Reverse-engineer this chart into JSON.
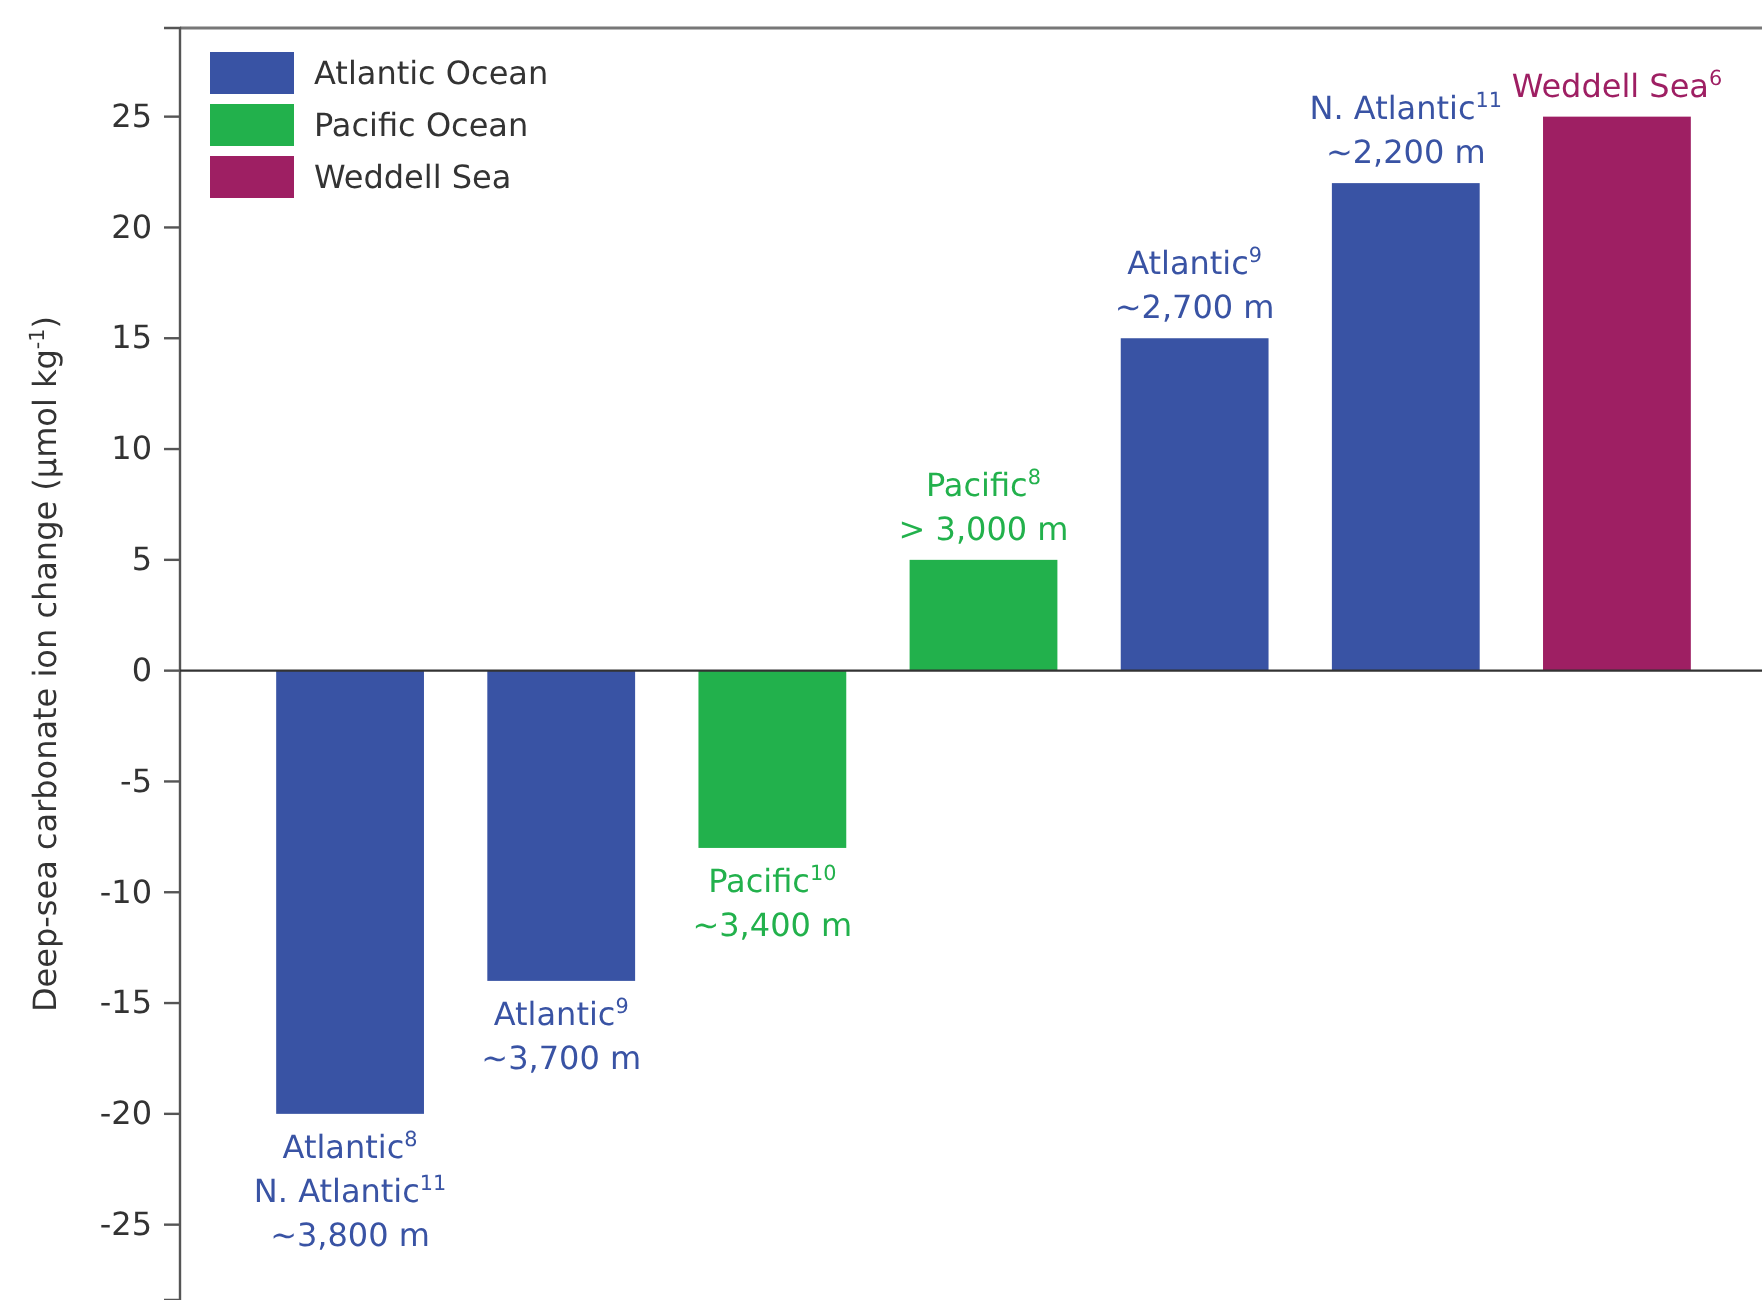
{
  "chart_data": {
    "type": "bar",
    "ylabel": "Deep-sea carbonate ion change (µmol kg$^{-1}$)",
    "categories": [
      null,
      null,
      null,
      null,
      null,
      null,
      null
    ],
    "series": [
      {
        "name": "Atlantic Ocean",
        "color": "#3953a4",
        "values": [
          -20,
          -14,
          null,
          null,
          15,
          22,
          null
        ]
      },
      {
        "name": "Pacific Ocean",
        "color": "#22b14c",
        "values": [
          null,
          null,
          -8,
          5,
          null,
          null,
          null
        ]
      },
      {
        "name": "Weddell Sea",
        "color": "#9e1f63",
        "values": [
          null,
          null,
          null,
          null,
          null,
          null,
          25
        ]
      }
    ],
    "annotations": [
      {
        "text": "Atlantic$^{8}$\nN. Atlantic$^{11}$\n~3,800 m",
        "y": -20
      },
      {
        "text": "Atlantic$^{9}$\n~3,700 m",
        "y": -14
      },
      {
        "text": "Pacific$^{10}$\n~3,400 m",
        "y": -8
      },
      {
        "text": "Pacific$^{8}$\n> 3,000 m",
        "y": 5
      },
      {
        "text": "Atlantic$^{9}$\n~2,700 m",
        "y": 15
      },
      {
        "text": "N. Atlantic$^{11}$\n~2,200 m",
        "y": 22
      },
      {
        "text": "Weddell Sea$^{6}$",
        "y": 25
      }
    ],
    "ylim": [
      -28.4,
      29
    ],
    "yticks": [
      -25,
      -20,
      -15,
      -10,
      -5,
      0,
      5,
      10,
      15,
      20,
      25
    ],
    "tick_labels": "y",
    "legend": "top left"
  }
}
